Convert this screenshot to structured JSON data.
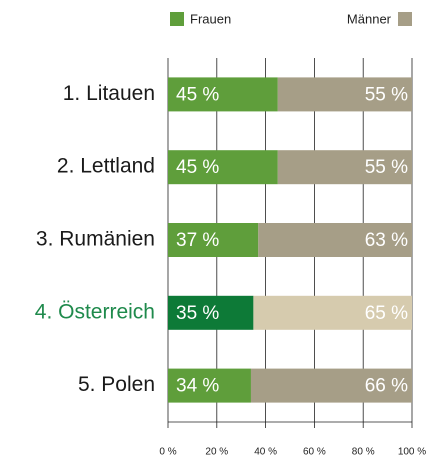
{
  "chart_data": {
    "type": "stacked_barh",
    "categories": [
      "1. Litauen",
      "2. Lettland",
      "3. Rumänien",
      "4. Österreich",
      "5. Polen"
    ],
    "category_colors": [
      "#1a1a1a",
      "#1a1a1a",
      "#1a1a1a",
      "#1f8a4c",
      "#1a1a1a"
    ],
    "series": [
      {
        "name": "Frauen",
        "color": "#5f9e3b",
        "colors": [
          "#5f9e3b",
          "#5f9e3b",
          "#5f9e3b",
          "#0d7a37",
          "#5f9e3b"
        ],
        "values": [
          45,
          45,
          37,
          35,
          34
        ],
        "value_labels": [
          "45 %",
          "45 %",
          "37 %",
          "35 %",
          "34 %"
        ]
      },
      {
        "name": "Männer",
        "color": "#a69e87",
        "colors": [
          "#a69e87",
          "#a69e87",
          "#a69e87",
          "#d6cbae",
          "#a69e87"
        ],
        "values": [
          55,
          55,
          63,
          65,
          66
        ],
        "value_labels": [
          "55 %",
          "55 %",
          "63 %",
          "65 %",
          "66 %"
        ]
      }
    ],
    "xlim": [
      0,
      100
    ],
    "xticks": [
      {
        "value": 0,
        "label": "0 %"
      },
      {
        "value": 20,
        "label": "20 %"
      },
      {
        "value": 40,
        "label": "40 %"
      },
      {
        "value": 60,
        "label": "60 %"
      },
      {
        "value": 80,
        "label": "80 %"
      },
      {
        "value": 100,
        "label": "100 %"
      }
    ],
    "grid": true
  }
}
